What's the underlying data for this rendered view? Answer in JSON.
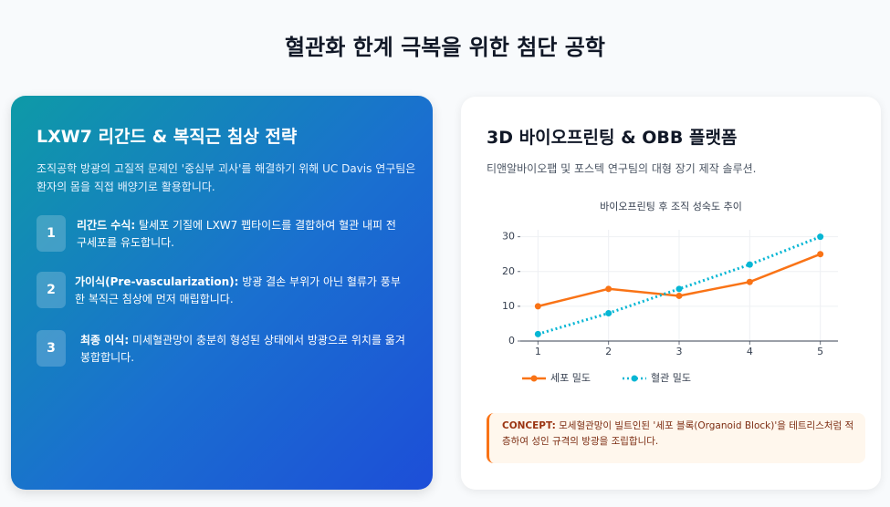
{
  "header": {
    "title": "혈관화 한계 극복을 위한 첨단 공학"
  },
  "left_card": {
    "title": "LXW7 리간드 & 복직근 침상 전략",
    "intro": "조직공학 방광의 고질적 문제인 '중심부 괴사'를 해결하기 위해 UC Davis 연구팀은 환자의 몸을 직접 배양기로 활용합니다.",
    "steps": [
      {
        "number": "1",
        "label": "리간드 수식:",
        "text": "탈세포 기질에 LXW7 펩타이드를 결합하여 혈관 내피 전구세포를 유도합니다."
      },
      {
        "number": "2",
        "label": "가이식(Pre-vascularization):",
        "text": "방광 결손 부위가 아닌 혈류가 풍부한 복직근 침상에 먼저 매립합니다."
      },
      {
        "number": "3",
        "label": "최종 이식:",
        "text": "미세혈관망이 충분히 형성된 상태에서 방광으로 위치를 옮겨 봉합합니다."
      }
    ]
  },
  "right_card": {
    "title": "3D 바이오프린팅 & OBB 플랫폼",
    "subtitle": "티앤알바이오팹 및 포스텍 연구팀의 대형 장기 제작 솔루션.",
    "concept": {
      "label": "CONCEPT:",
      "text": "모세혈관망이 빌트인된 '세포 블록(Organoid Block)'을 테트리스처럼 적층하여 성인 규격의 방광을 조립합니다."
    }
  },
  "chart_data": {
    "type": "line",
    "title": "바이오프린팅 후 조직 성숙도 추이",
    "x": [
      1,
      2,
      3,
      4,
      5
    ],
    "series": [
      {
        "name": "세포 밀도",
        "color": "#f97316",
        "line_style": "solid",
        "values": [
          10,
          15,
          13,
          17,
          25
        ]
      },
      {
        "name": "혈관 밀도",
        "color": "#06b6d4",
        "line_style": "dotted",
        "values": [
          2,
          8,
          15,
          22,
          30
        ]
      }
    ],
    "xlim": [
      0.75,
      5.25
    ],
    "xticks": [
      1,
      2,
      3,
      4,
      5
    ],
    "ylim": [
      0,
      32
    ],
    "yticks": [
      0,
      10,
      20,
      30
    ],
    "grid": true,
    "legend": "bottom-left"
  }
}
